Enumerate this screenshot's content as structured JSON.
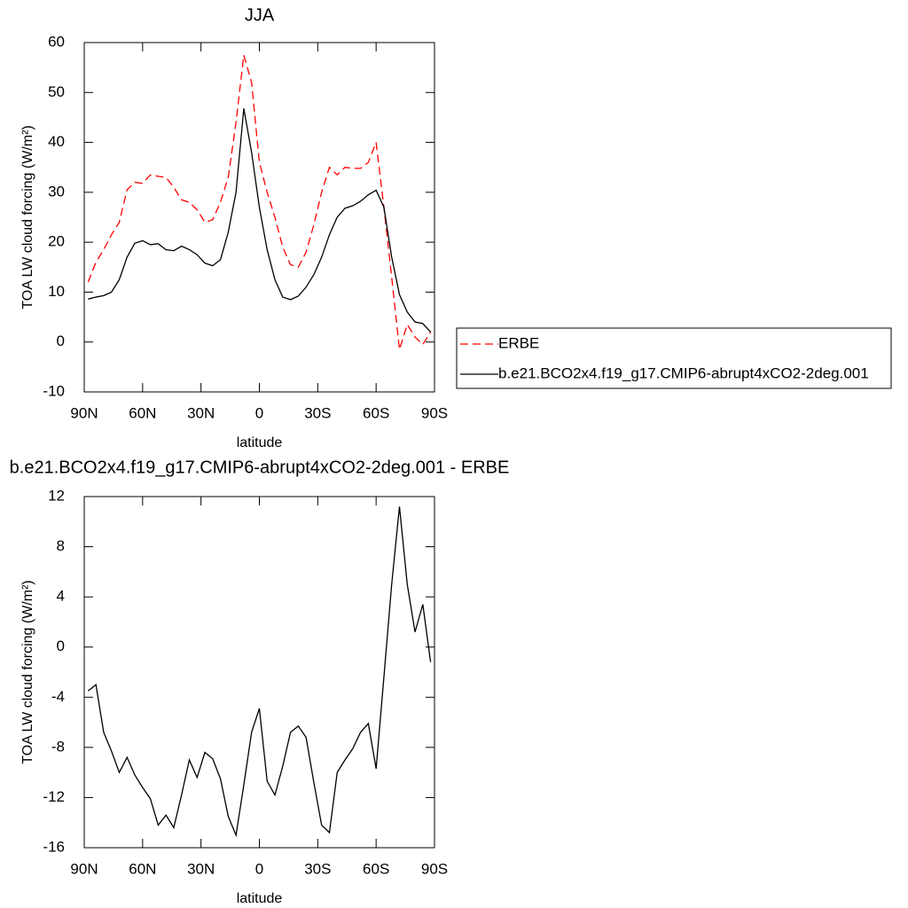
{
  "chart_data": [
    {
      "type": "line",
      "title": "JJA",
      "xlabel": "latitude",
      "ylabel": "TOA LW cloud forcing (W/m²)",
      "xlim": [
        90,
        -90
      ],
      "xticks": [
        {
          "value": 90,
          "label": "90N"
        },
        {
          "value": 60,
          "label": "60N"
        },
        {
          "value": 30,
          "label": "30N"
        },
        0,
        {
          "value": -30,
          "label": "30S"
        },
        {
          "value": -60,
          "label": "60S"
        },
        {
          "value": -90,
          "label": "90S"
        }
      ],
      "ylim": [
        -10,
        60
      ],
      "yticks": [
        -10,
        0,
        10,
        20,
        30,
        40,
        50,
        60
      ],
      "legend": "right",
      "x": [
        88,
        84,
        80,
        76,
        72,
        68,
        64,
        60,
        56,
        52,
        48,
        44,
        40,
        36,
        32,
        28,
        24,
        20,
        16,
        12,
        8,
        4,
        0,
        -4,
        -8,
        -12,
        -16,
        -20,
        -24,
        -28,
        -32,
        -36,
        -40,
        -44,
        -48,
        -52,
        -56,
        -60,
        -64,
        -68,
        -72,
        -76,
        -80,
        -84,
        -88
      ],
      "series": [
        {
          "name": "ERBE",
          "color": "#ff0000",
          "line_style": "dashed",
          "values": [
            12,
            16,
            18.5,
            21.5,
            24,
            30.5,
            32,
            31.8,
            33.5,
            33.2,
            33,
            31,
            28.5,
            28,
            26.5,
            24,
            24.5,
            28,
            33,
            44,
            57.5,
            52,
            36,
            30,
            25,
            19,
            15.5,
            15,
            18,
            23.5,
            30,
            35,
            33.5,
            35,
            34.8,
            34.8,
            36,
            40,
            27,
            13,
            -1.5,
            3.5,
            1,
            -0.5,
            2
          ]
        },
        {
          "name": "b.e21.BCO2x4.f19_g17.CMIP6-abrupt4xCO2-2deg.001",
          "color": "#000000",
          "line_style": "solid",
          "values": [
            8.6,
            9,
            9.3,
            10,
            12.5,
            17,
            19.8,
            20.3,
            19.5,
            19.7,
            18.5,
            18.3,
            19.2,
            18.5,
            17.5,
            15.8,
            15.3,
            16.5,
            22,
            30,
            46.8,
            38,
            27,
            18.5,
            12.5,
            9,
            8.5,
            9.2,
            11,
            13.5,
            17,
            21.5,
            25,
            26.8,
            27.3,
            28.2,
            29.5,
            30.4,
            27,
            17,
            9.5,
            6,
            4,
            3.7,
            2
          ]
        }
      ]
    },
    {
      "type": "line",
      "title": "b.e21.BCO2x4.f19_g17.CMIP6-abrupt4xCO2-2deg.001 - ERBE",
      "xlabel": "latitude",
      "ylabel": "TOA LW cloud forcing (W/m²)",
      "xlim": [
        90,
        -90
      ],
      "xticks": [
        {
          "value": 90,
          "label": "90N"
        },
        {
          "value": 60,
          "label": "60N"
        },
        {
          "value": 30,
          "label": "30N"
        },
        0,
        {
          "value": -30,
          "label": "30S"
        },
        {
          "value": -60,
          "label": "60S"
        },
        {
          "value": -90,
          "label": "90S"
        }
      ],
      "ylim": [
        -16,
        12
      ],
      "yticks": [
        -16,
        -12,
        -8,
        -4,
        0,
        4,
        8,
        12
      ],
      "x": [
        88,
        84,
        80,
        76,
        72,
        68,
        64,
        60,
        56,
        52,
        48,
        44,
        40,
        36,
        32,
        28,
        24,
        20,
        16,
        12,
        8,
        4,
        0,
        -4,
        -8,
        -12,
        -16,
        -20,
        -24,
        -28,
        -32,
        -36,
        -40,
        -44,
        -48,
        -52,
        -56,
        -60,
        -64,
        -68,
        -72,
        -76,
        -80,
        -84,
        -88
      ],
      "color": "#000000",
      "values": [
        -3.5,
        -3,
        -6.8,
        -8.3,
        -10,
        -8.8,
        -10.2,
        -11.2,
        -12.1,
        -14.2,
        -13.4,
        -14.4,
        -11.8,
        -9,
        -10.4,
        -8.4,
        -8.9,
        -10.5,
        -13.5,
        -15,
        -11,
        -6.8,
        -4.9,
        -10.7,
        -11.8,
        -9.5,
        -6.8,
        -6.3,
        -7.2,
        -10.8,
        -14.2,
        -14.8,
        -10,
        -9,
        -8.1,
        -6.8,
        -6.1,
        -9.7,
        -2.4,
        5,
        11.2,
        5,
        1.2,
        3.4,
        -1.2
      ]
    }
  ]
}
